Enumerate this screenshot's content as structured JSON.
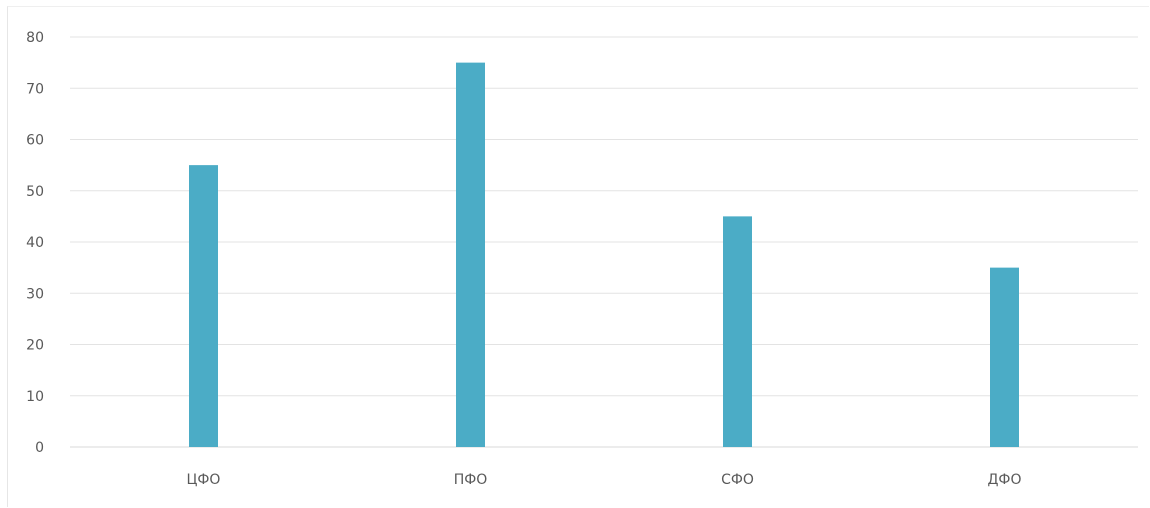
{
  "chart_data": {
    "type": "bar",
    "categories": [
      "ЦФО",
      "ПФО",
      "СФО",
      "ДФО"
    ],
    "values": [
      55,
      75,
      45,
      35
    ],
    "yticks": [
      "0",
      "10",
      "20",
      "30",
      "40",
      "50",
      "60",
      "70",
      "80"
    ],
    "ylim": [
      0,
      80
    ],
    "grid": true,
    "legend": "none",
    "title": "",
    "xlabel": "",
    "ylabel": "",
    "colors": {
      "bar": "#4bacc6",
      "grid": "#e3e3e3",
      "text": "#595959"
    }
  }
}
